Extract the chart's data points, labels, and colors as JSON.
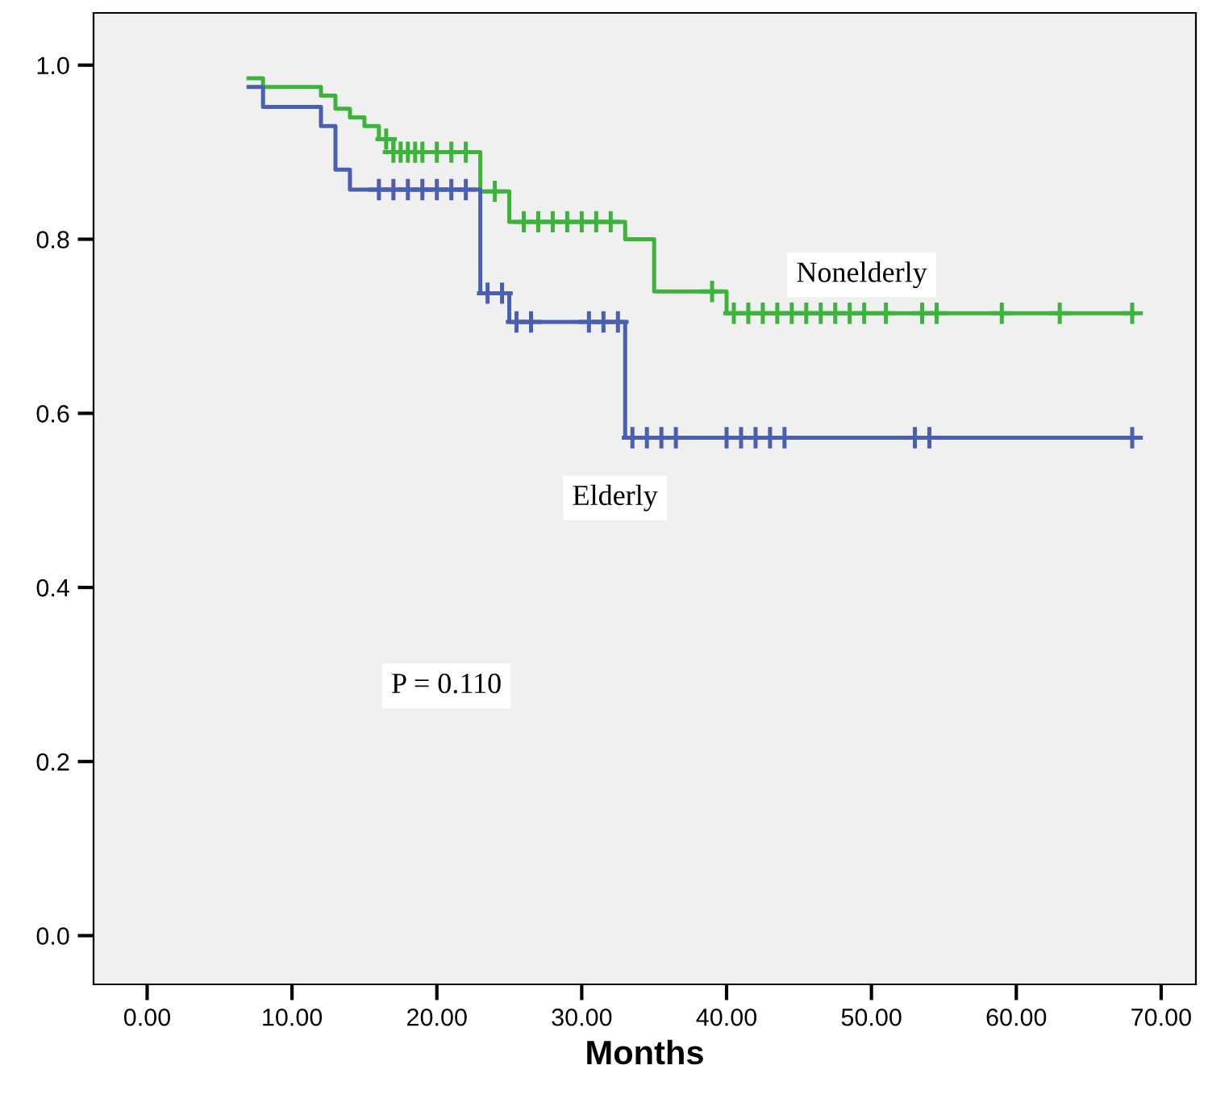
{
  "chart_data": {
    "type": "step",
    "xlabel": "Months",
    "annotations": [
      "P = 0.110"
    ],
    "series": [
      {
        "name": "Nonelderly",
        "color": "#3cb43c",
        "x": [
          7,
          8,
          12,
          13,
          14,
          15,
          16,
          17,
          23,
          25,
          33,
          35,
          40,
          68
        ],
        "values": [
          0.985,
          0.975,
          0.965,
          0.95,
          0.94,
          0.93,
          0.915,
          0.9,
          0.855,
          0.82,
          0.8,
          0.74,
          0.715,
          0.715
        ]
      },
      {
        "name": "Elderly",
        "color": "#4a5fb0",
        "x": [
          7,
          8,
          12,
          13,
          14,
          23,
          25,
          33,
          68
        ],
        "values": [
          0.975,
          0.952,
          0.93,
          0.88,
          0.857,
          0.738,
          0.705,
          0.572,
          0.572
        ]
      },
      {
        "color": "#3cb43c",
        "type": "scatter",
        "marker": "cross",
        "x": [
          16.5,
          17,
          17.5,
          18,
          18.5,
          19,
          20,
          21,
          22,
          24,
          26,
          27,
          28,
          29,
          30,
          31,
          32,
          39,
          40.5,
          41.5,
          42.5,
          43.5,
          44.5,
          45.5,
          46.5,
          47.5,
          48.5,
          49.5,
          51,
          53.5,
          54.5,
          59,
          63,
          68
        ],
        "values": [
          0.915,
          0.9,
          0.9,
          0.9,
          0.9,
          0.9,
          0.9,
          0.9,
          0.9,
          0.855,
          0.82,
          0.82,
          0.82,
          0.82,
          0.82,
          0.82,
          0.82,
          0.74,
          0.715,
          0.715,
          0.715,
          0.715,
          0.715,
          0.715,
          0.715,
          0.715,
          0.715,
          0.715,
          0.715,
          0.715,
          0.715,
          0.715,
          0.715,
          0.715
        ]
      },
      {
        "color": "#4a5fb0",
        "type": "scatter",
        "marker": "cross",
        "x": [
          16,
          17,
          18,
          19,
          20,
          21,
          22,
          23.5,
          24.5,
          25.5,
          26.5,
          30.5,
          31.5,
          32.5,
          33.5,
          34.5,
          35.5,
          36.5,
          40,
          41,
          42,
          43,
          44,
          53,
          54,
          68
        ],
        "values": [
          0.857,
          0.857,
          0.857,
          0.857,
          0.857,
          0.857,
          0.857,
          0.738,
          0.738,
          0.705,
          0.705,
          0.705,
          0.705,
          0.705,
          0.572,
          0.572,
          0.572,
          0.572,
          0.572,
          0.572,
          0.572,
          0.572,
          0.572,
          0.572,
          0.572,
          0.572
        ]
      }
    ],
    "xlim": [
      -3.7,
      72.4
    ],
    "ylim": [
      -0.056,
      1.06
    ],
    "xticks": [
      {
        "value": 0,
        "label": "0.00"
      },
      {
        "value": 10,
        "label": "10.00"
      },
      {
        "value": 20,
        "label": "20.00"
      },
      {
        "value": 30,
        "label": "30.00"
      },
      {
        "value": 40,
        "label": "40.00"
      },
      {
        "value": 50,
        "label": "50.00"
      },
      {
        "value": 60,
        "label": "60.00"
      },
      {
        "value": 70,
        "label": "70.00"
      }
    ],
    "yticks": [
      {
        "value": 0,
        "label": "0.0"
      },
      {
        "value": 0.2,
        "label": "0.2"
      },
      {
        "value": 0.4,
        "label": "0.4"
      },
      {
        "value": 0.6,
        "label": "0.6"
      },
      {
        "value": 0.8,
        "label": "0.8"
      },
      {
        "value": 1.0,
        "label": "1.0"
      }
    ],
    "grid": false,
    "legend": false
  }
}
